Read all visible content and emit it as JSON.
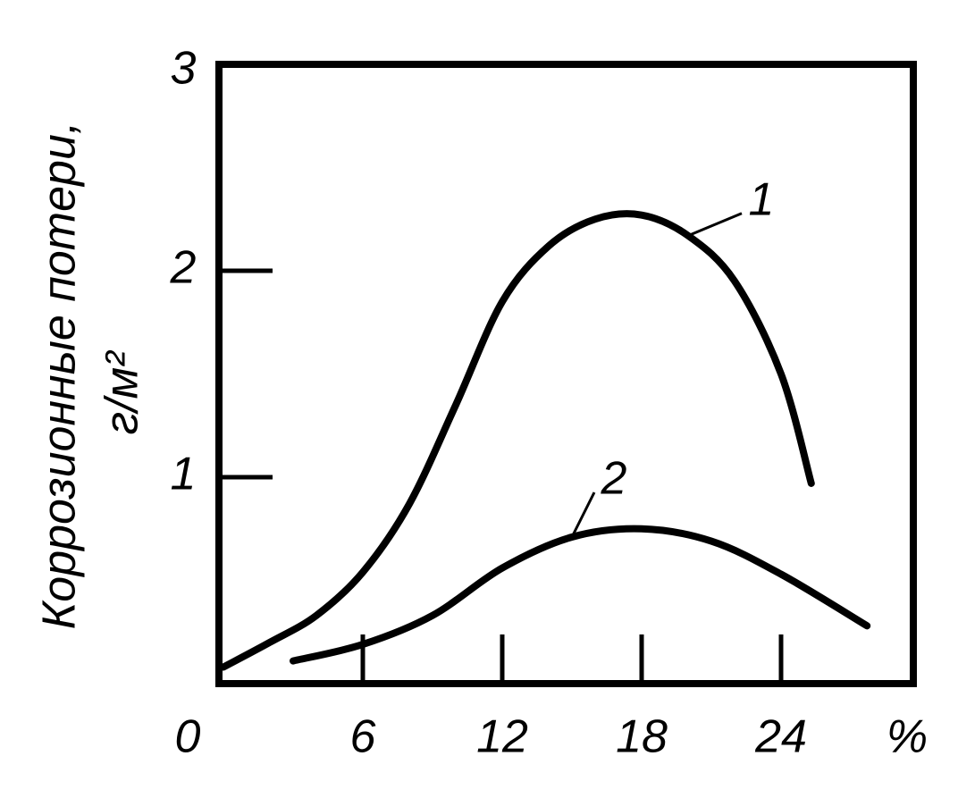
{
  "chart_data": {
    "type": "line",
    "ylabel": [
      "Коррозионные потери,",
      "г/м²"
    ],
    "xlabel": "%",
    "xlim": [
      0,
      30
    ],
    "ylim": [
      0,
      3
    ],
    "xticks": [
      0,
      6,
      12,
      18,
      24
    ],
    "yticks": [
      1,
      2,
      3
    ],
    "series": [
      {
        "name": "1",
        "color": "#000000",
        "x": [
          0,
          2,
          4,
          6,
          8,
          10,
          12,
          14,
          16,
          18,
          20,
          22,
          24,
          25.3
        ],
        "values": [
          0.08,
          0.2,
          0.33,
          0.54,
          0.87,
          1.35,
          1.85,
          2.12,
          2.25,
          2.27,
          2.17,
          1.95,
          1.5,
          0.97
        ]
      },
      {
        "name": "2",
        "color": "#000000",
        "x": [
          3,
          6,
          9,
          12,
          15,
          18,
          21,
          24,
          27.7
        ],
        "values": [
          0.11,
          0.19,
          0.33,
          0.56,
          0.71,
          0.75,
          0.69,
          0.53,
          0.28
        ]
      }
    ]
  }
}
